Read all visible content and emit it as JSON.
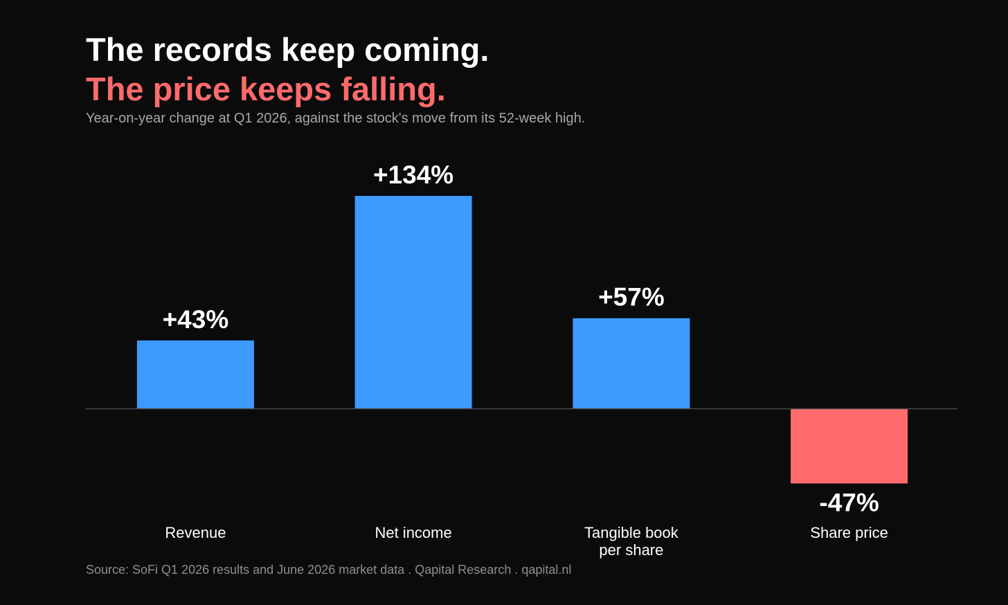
{
  "header": {
    "title_line1": "The records keep coming.",
    "title_line2": "The price keeps falling.",
    "subtitle": "Year-on-year change at Q1 2026, against the stock's move from its 52-week high."
  },
  "footer": {
    "source": "Source: SoFi Q1 2026 results and June 2026 market data  .  Qapital Research  .  qapital.nl"
  },
  "colors": {
    "background": "#0b0b0c",
    "positive": "#3d9bff",
    "negative": "#ff6b6b",
    "baseline": "#4a4a4e",
    "title_accent": "#ff6b6b"
  },
  "chart_data": {
    "type": "bar",
    "title": "The records keep coming. The price keeps falling.",
    "subtitle": "Year-on-year change at Q1 2026, against the stock's move from its 52-week high.",
    "categories": [
      [
        "Revenue"
      ],
      [
        "Net income"
      ],
      [
        "Tangible book",
        "per share"
      ],
      [
        "Share price"
      ]
    ],
    "values": [
      43,
      134,
      57,
      -47
    ],
    "value_labels": [
      "+43%",
      "+134%",
      "+57%",
      "-47%"
    ],
    "unit": "%",
    "xlabel": "",
    "ylabel": "",
    "ylim": [
      -60,
      150
    ],
    "grid": false,
    "legend": "none"
  }
}
